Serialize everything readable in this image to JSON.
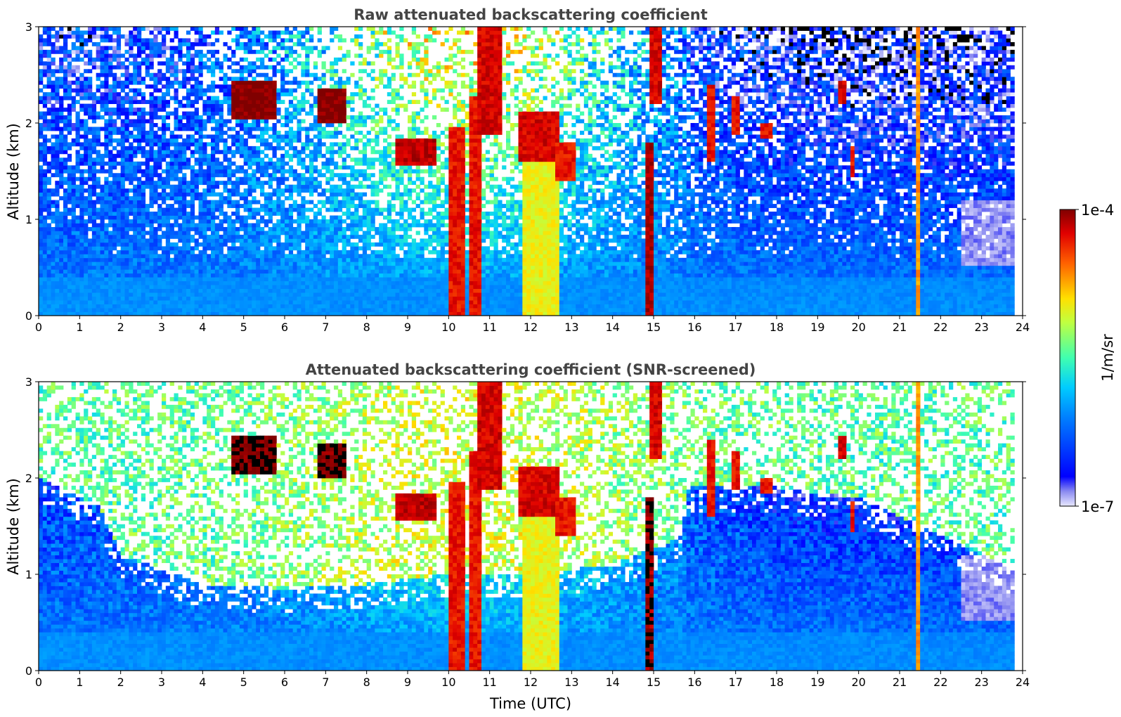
{
  "chart_data": [
    {
      "type": "heatmap",
      "title": "Raw attenuated backscattering coefficient",
      "xlabel": "",
      "ylabel": "Altitude (km)",
      "xlim": [
        0,
        24
      ],
      "ylim": [
        0,
        3
      ],
      "x_ticks": [
        "0",
        "1",
        "2",
        "3",
        "4",
        "5",
        "6",
        "7",
        "8",
        "9",
        "10",
        "11",
        "12",
        "13",
        "14",
        "15",
        "16",
        "17",
        "18",
        "19",
        "20",
        "21",
        "22",
        "23",
        "24"
      ],
      "y_ticks": [
        "0",
        "1",
        "2",
        "3"
      ],
      "colorscale": "jet",
      "log_scale": true,
      "cloud_features": [
        {
          "t_start": 4.7,
          "t_end": 5.8,
          "alt_low": 2.05,
          "alt_high": 2.45,
          "level": "1e-4"
        },
        {
          "t_start": 6.8,
          "t_end": 7.5,
          "alt_low": 2.0,
          "alt_high": 2.35,
          "level": "1e-4"
        },
        {
          "t_start": 8.7,
          "t_end": 9.7,
          "alt_low": 1.55,
          "alt_high": 1.85,
          "level": "7e-5"
        },
        {
          "t_start": 10.0,
          "t_end": 10.4,
          "alt_low": 0.0,
          "alt_high": 1.95,
          "level": "5e-5"
        },
        {
          "t_start": 10.5,
          "t_end": 10.75,
          "alt_low": 0.0,
          "alt_high": 2.3,
          "level": "5e-5"
        },
        {
          "t_start": 10.75,
          "t_end": 11.3,
          "alt_low": 1.9,
          "alt_high": 3.0,
          "level": "6e-5"
        },
        {
          "t_start": 11.8,
          "t_end": 12.7,
          "alt_low": 0.0,
          "alt_high": 1.6,
          "level": "1e-5"
        },
        {
          "t_start": 11.7,
          "t_end": 12.7,
          "alt_low": 1.6,
          "alt_high": 2.1,
          "level": "6e-5"
        },
        {
          "t_start": 12.6,
          "t_end": 13.1,
          "alt_low": 1.4,
          "alt_high": 1.8,
          "level": "5e-5"
        },
        {
          "t_start": 14.8,
          "t_end": 14.95,
          "alt_low": 0.0,
          "alt_high": 1.8,
          "level": "8e-5"
        },
        {
          "t_start": 14.95,
          "t_end": 15.2,
          "alt_low": 2.2,
          "alt_high": 3.0,
          "level": "6e-5"
        },
        {
          "t_start": 16.3,
          "t_end": 16.5,
          "alt_low": 1.6,
          "alt_high": 2.4,
          "level": "5e-5"
        },
        {
          "t_start": 16.9,
          "t_end": 17.1,
          "alt_low": 1.9,
          "alt_high": 2.3,
          "level": "5e-5"
        },
        {
          "t_start": 17.6,
          "t_end": 17.9,
          "alt_low": 1.85,
          "alt_high": 2.0,
          "level": "5e-5"
        },
        {
          "t_start": 19.5,
          "t_end": 19.7,
          "alt_low": 2.2,
          "alt_high": 2.45,
          "level": "6e-5"
        },
        {
          "t_start": 19.8,
          "t_end": 19.95,
          "alt_low": 1.45,
          "alt_high": 1.75,
          "level": "5e-5"
        },
        {
          "t_start": 21.4,
          "t_end": 21.5,
          "alt_low": 0.0,
          "alt_high": 3.0,
          "level": "2e-5"
        }
      ]
    },
    {
      "type": "heatmap",
      "title": "Attenuated backscattering coefficient (SNR-screened)",
      "xlabel": "Time (UTC)",
      "ylabel": "Altitude (km)",
      "xlim": [
        0,
        24
      ],
      "ylim": [
        0,
        3
      ],
      "x_ticks": [
        "0",
        "1",
        "2",
        "3",
        "4",
        "5",
        "6",
        "7",
        "8",
        "9",
        "10",
        "11",
        "12",
        "13",
        "14",
        "15",
        "16",
        "17",
        "18",
        "19",
        "20",
        "21",
        "22",
        "23",
        "24"
      ],
      "y_ticks": [
        "0",
        "1",
        "2",
        "3"
      ],
      "colorscale": "jet",
      "log_scale": true,
      "screened_color": "#ffffff",
      "screened_boundary_km": [
        [
          0,
          2.0
        ],
        [
          1.5,
          1.7
        ],
        [
          2,
          1.2
        ],
        [
          4,
          0.9
        ],
        [
          6,
          0.85
        ],
        [
          8,
          0.9
        ],
        [
          10,
          1.0
        ],
        [
          12,
          1.0
        ],
        [
          14,
          1.1
        ],
        [
          15.7,
          1.4
        ],
        [
          15.8,
          1.9
        ],
        [
          18,
          1.9
        ],
        [
          20,
          1.8
        ],
        [
          22,
          1.4
        ],
        [
          24,
          1.0
        ]
      ]
    }
  ],
  "colorbar": {
    "label": "1/m/sr",
    "max_label": "1e-4",
    "min_label": "1e-7",
    "range": [
      1e-07,
      0.0001
    ],
    "scale": "log"
  }
}
